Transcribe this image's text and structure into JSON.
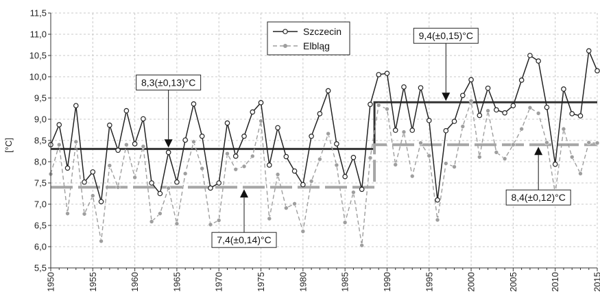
{
  "chart_data": {
    "type": "line",
    "xlabel": "",
    "ylabel": "[°C]",
    "xlim": [
      1950,
      2015
    ],
    "ylim": [
      5.5,
      11.5
    ],
    "x_ticks": [
      1950,
      1955,
      1960,
      1965,
      1970,
      1975,
      1980,
      1985,
      1990,
      1995,
      2000,
      2005,
      2010,
      2015
    ],
    "y_ticks": [
      "5,5",
      "6,0",
      "6,5",
      "7,0",
      "7,5",
      "8,0",
      "8,5",
      "9,0",
      "9,5",
      "10,0",
      "10,5",
      "11,0",
      "11,5"
    ],
    "grid": true,
    "legend_position": "top-center",
    "x": [
      1950,
      1951,
      1952,
      1953,
      1954,
      1955,
      1956,
      1957,
      1958,
      1959,
      1960,
      1961,
      1962,
      1963,
      1964,
      1965,
      1966,
      1967,
      1968,
      1969,
      1970,
      1971,
      1972,
      1973,
      1974,
      1975,
      1976,
      1977,
      1978,
      1979,
      1980,
      1981,
      1982,
      1983,
      1984,
      1985,
      1986,
      1987,
      1988,
      1989,
      1990,
      1991,
      1992,
      1993,
      1994,
      1995,
      1996,
      1997,
      1998,
      1999,
      2000,
      2001,
      2002,
      2003,
      2004,
      2005,
      2006,
      2007,
      2008,
      2009,
      2010,
      2011,
      2012,
      2013,
      2014,
      2015
    ],
    "series": [
      {
        "name": "Szczecin",
        "color": "#222222",
        "values": [
          8.4,
          8.87,
          7.85,
          9.32,
          7.52,
          7.76,
          7.06,
          8.86,
          8.27,
          9.2,
          8.42,
          9.01,
          7.5,
          7.25,
          8.22,
          7.52,
          8.51,
          9.36,
          8.6,
          7.38,
          7.5,
          8.91,
          8.13,
          8.6,
          9.17,
          9.39,
          7.92,
          8.8,
          8.12,
          7.78,
          7.46,
          8.6,
          9.13,
          9.67,
          8.42,
          7.65,
          8.1,
          7.35,
          9.35,
          10.05,
          10.08,
          8.74,
          9.76,
          8.74,
          9.74,
          8.97,
          7.1,
          8.73,
          8.95,
          9.56,
          9.93,
          9.09,
          9.73,
          9.22,
          9.15,
          9.32,
          9.92,
          10.5,
          10.37,
          9.28,
          7.94,
          9.71,
          9.13,
          9.08,
          10.61,
          10.14
        ]
      },
      {
        "name": "Elbląg",
        "color": "#9e9e9e",
        "values": [
          7.71,
          8.4,
          6.78,
          8.47,
          6.77,
          7.2,
          6.13,
          7.91,
          7.4,
          8.4,
          7.63,
          8.36,
          6.59,
          6.78,
          7.38,
          6.54,
          7.72,
          8.47,
          7.84,
          6.52,
          6.62,
          8.19,
          7.82,
          7.89,
          8.13,
          8.96,
          6.66,
          7.7,
          6.91,
          7.01,
          6.36,
          7.54,
          8.06,
          8.66,
          7.92,
          6.57,
          7.28,
          6.03,
          8.09,
          9.33,
          9.24,
          7.93,
          8.7,
          7.66,
          8.44,
          8.14,
          6.63,
          7.96,
          7.88,
          8.83,
          9.43,
          8.11,
          9.2,
          8.22,
          8.07,
          8.4,
          8.77,
          9.27,
          9.14,
          8.45,
          7.25,
          8.77,
          8.11,
          7.72,
          8.45,
          8.44
        ]
      }
    ],
    "step_means": [
      {
        "series": "Szczecin",
        "segments": [
          {
            "x": [
              1950,
              1988.5
            ],
            "y": 8.3
          },
          {
            "x": [
              1988.5,
              2015
            ],
            "y": 9.4
          }
        ]
      },
      {
        "series": "Elbląg",
        "segments": [
          {
            "x": [
              1950,
              1988.5
            ],
            "y": 7.4
          },
          {
            "x": [
              1988.5,
              2015
            ],
            "y": 8.4
          }
        ]
      }
    ],
    "annotations": [
      {
        "text": "8,3(±0,13)°C",
        "target_year": 1964,
        "target_value": 8.3,
        "direction": "down"
      },
      {
        "text": "9,4(±0,15)°C",
        "target_year": 1997,
        "target_value": 9.4,
        "direction": "down"
      },
      {
        "text": "7,4(±0,14)°C",
        "target_year": 1973,
        "target_value": 7.4,
        "direction": "up"
      },
      {
        "text": "8,4(±0,12)°C",
        "target_year": 2008,
        "target_value": 8.4,
        "direction": "up"
      }
    ]
  }
}
